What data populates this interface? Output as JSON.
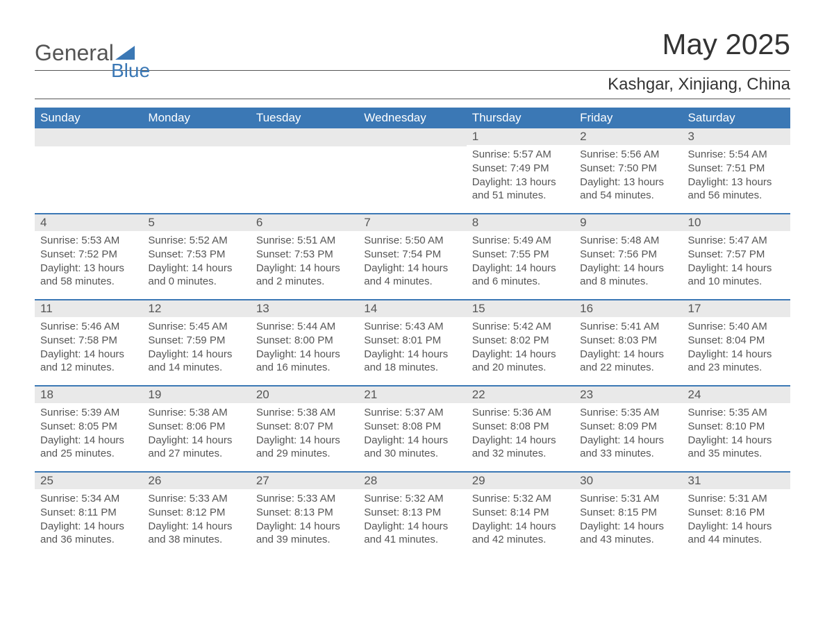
{
  "logo": {
    "general": "General",
    "blue": "Blue"
  },
  "title": "May 2025",
  "location": "Kashgar, Xinjiang, China",
  "weekdays": [
    "Sunday",
    "Monday",
    "Tuesday",
    "Wednesday",
    "Thursday",
    "Friday",
    "Saturday"
  ],
  "colors": {
    "header_bg": "#3b78b5",
    "daynum_bg": "#e9e9e9",
    "text": "#555555",
    "border": "#3b78b5"
  },
  "weeks": [
    [
      {
        "day": "",
        "sunrise": "",
        "sunset": "",
        "daylight": ""
      },
      {
        "day": "",
        "sunrise": "",
        "sunset": "",
        "daylight": ""
      },
      {
        "day": "",
        "sunrise": "",
        "sunset": "",
        "daylight": ""
      },
      {
        "day": "",
        "sunrise": "",
        "sunset": "",
        "daylight": ""
      },
      {
        "day": "1",
        "sunrise": "Sunrise: 5:57 AM",
        "sunset": "Sunset: 7:49 PM",
        "daylight": "Daylight: 13 hours and 51 minutes."
      },
      {
        "day": "2",
        "sunrise": "Sunrise: 5:56 AM",
        "sunset": "Sunset: 7:50 PM",
        "daylight": "Daylight: 13 hours and 54 minutes."
      },
      {
        "day": "3",
        "sunrise": "Sunrise: 5:54 AM",
        "sunset": "Sunset: 7:51 PM",
        "daylight": "Daylight: 13 hours and 56 minutes."
      }
    ],
    [
      {
        "day": "4",
        "sunrise": "Sunrise: 5:53 AM",
        "sunset": "Sunset: 7:52 PM",
        "daylight": "Daylight: 13 hours and 58 minutes."
      },
      {
        "day": "5",
        "sunrise": "Sunrise: 5:52 AM",
        "sunset": "Sunset: 7:53 PM",
        "daylight": "Daylight: 14 hours and 0 minutes."
      },
      {
        "day": "6",
        "sunrise": "Sunrise: 5:51 AM",
        "sunset": "Sunset: 7:53 PM",
        "daylight": "Daylight: 14 hours and 2 minutes."
      },
      {
        "day": "7",
        "sunrise": "Sunrise: 5:50 AM",
        "sunset": "Sunset: 7:54 PM",
        "daylight": "Daylight: 14 hours and 4 minutes."
      },
      {
        "day": "8",
        "sunrise": "Sunrise: 5:49 AM",
        "sunset": "Sunset: 7:55 PM",
        "daylight": "Daylight: 14 hours and 6 minutes."
      },
      {
        "day": "9",
        "sunrise": "Sunrise: 5:48 AM",
        "sunset": "Sunset: 7:56 PM",
        "daylight": "Daylight: 14 hours and 8 minutes."
      },
      {
        "day": "10",
        "sunrise": "Sunrise: 5:47 AM",
        "sunset": "Sunset: 7:57 PM",
        "daylight": "Daylight: 14 hours and 10 minutes."
      }
    ],
    [
      {
        "day": "11",
        "sunrise": "Sunrise: 5:46 AM",
        "sunset": "Sunset: 7:58 PM",
        "daylight": "Daylight: 14 hours and 12 minutes."
      },
      {
        "day": "12",
        "sunrise": "Sunrise: 5:45 AM",
        "sunset": "Sunset: 7:59 PM",
        "daylight": "Daylight: 14 hours and 14 minutes."
      },
      {
        "day": "13",
        "sunrise": "Sunrise: 5:44 AM",
        "sunset": "Sunset: 8:00 PM",
        "daylight": "Daylight: 14 hours and 16 minutes."
      },
      {
        "day": "14",
        "sunrise": "Sunrise: 5:43 AM",
        "sunset": "Sunset: 8:01 PM",
        "daylight": "Daylight: 14 hours and 18 minutes."
      },
      {
        "day": "15",
        "sunrise": "Sunrise: 5:42 AM",
        "sunset": "Sunset: 8:02 PM",
        "daylight": "Daylight: 14 hours and 20 minutes."
      },
      {
        "day": "16",
        "sunrise": "Sunrise: 5:41 AM",
        "sunset": "Sunset: 8:03 PM",
        "daylight": "Daylight: 14 hours and 22 minutes."
      },
      {
        "day": "17",
        "sunrise": "Sunrise: 5:40 AM",
        "sunset": "Sunset: 8:04 PM",
        "daylight": "Daylight: 14 hours and 23 minutes."
      }
    ],
    [
      {
        "day": "18",
        "sunrise": "Sunrise: 5:39 AM",
        "sunset": "Sunset: 8:05 PM",
        "daylight": "Daylight: 14 hours and 25 minutes."
      },
      {
        "day": "19",
        "sunrise": "Sunrise: 5:38 AM",
        "sunset": "Sunset: 8:06 PM",
        "daylight": "Daylight: 14 hours and 27 minutes."
      },
      {
        "day": "20",
        "sunrise": "Sunrise: 5:38 AM",
        "sunset": "Sunset: 8:07 PM",
        "daylight": "Daylight: 14 hours and 29 minutes."
      },
      {
        "day": "21",
        "sunrise": "Sunrise: 5:37 AM",
        "sunset": "Sunset: 8:08 PM",
        "daylight": "Daylight: 14 hours and 30 minutes."
      },
      {
        "day": "22",
        "sunrise": "Sunrise: 5:36 AM",
        "sunset": "Sunset: 8:08 PM",
        "daylight": "Daylight: 14 hours and 32 minutes."
      },
      {
        "day": "23",
        "sunrise": "Sunrise: 5:35 AM",
        "sunset": "Sunset: 8:09 PM",
        "daylight": "Daylight: 14 hours and 33 minutes."
      },
      {
        "day": "24",
        "sunrise": "Sunrise: 5:35 AM",
        "sunset": "Sunset: 8:10 PM",
        "daylight": "Daylight: 14 hours and 35 minutes."
      }
    ],
    [
      {
        "day": "25",
        "sunrise": "Sunrise: 5:34 AM",
        "sunset": "Sunset: 8:11 PM",
        "daylight": "Daylight: 14 hours and 36 minutes."
      },
      {
        "day": "26",
        "sunrise": "Sunrise: 5:33 AM",
        "sunset": "Sunset: 8:12 PM",
        "daylight": "Daylight: 14 hours and 38 minutes."
      },
      {
        "day": "27",
        "sunrise": "Sunrise: 5:33 AM",
        "sunset": "Sunset: 8:13 PM",
        "daylight": "Daylight: 14 hours and 39 minutes."
      },
      {
        "day": "28",
        "sunrise": "Sunrise: 5:32 AM",
        "sunset": "Sunset: 8:13 PM",
        "daylight": "Daylight: 14 hours and 41 minutes."
      },
      {
        "day": "29",
        "sunrise": "Sunrise: 5:32 AM",
        "sunset": "Sunset: 8:14 PM",
        "daylight": "Daylight: 14 hours and 42 minutes."
      },
      {
        "day": "30",
        "sunrise": "Sunrise: 5:31 AM",
        "sunset": "Sunset: 8:15 PM",
        "daylight": "Daylight: 14 hours and 43 minutes."
      },
      {
        "day": "31",
        "sunrise": "Sunrise: 5:31 AM",
        "sunset": "Sunset: 8:16 PM",
        "daylight": "Daylight: 14 hours and 44 minutes."
      }
    ]
  ]
}
